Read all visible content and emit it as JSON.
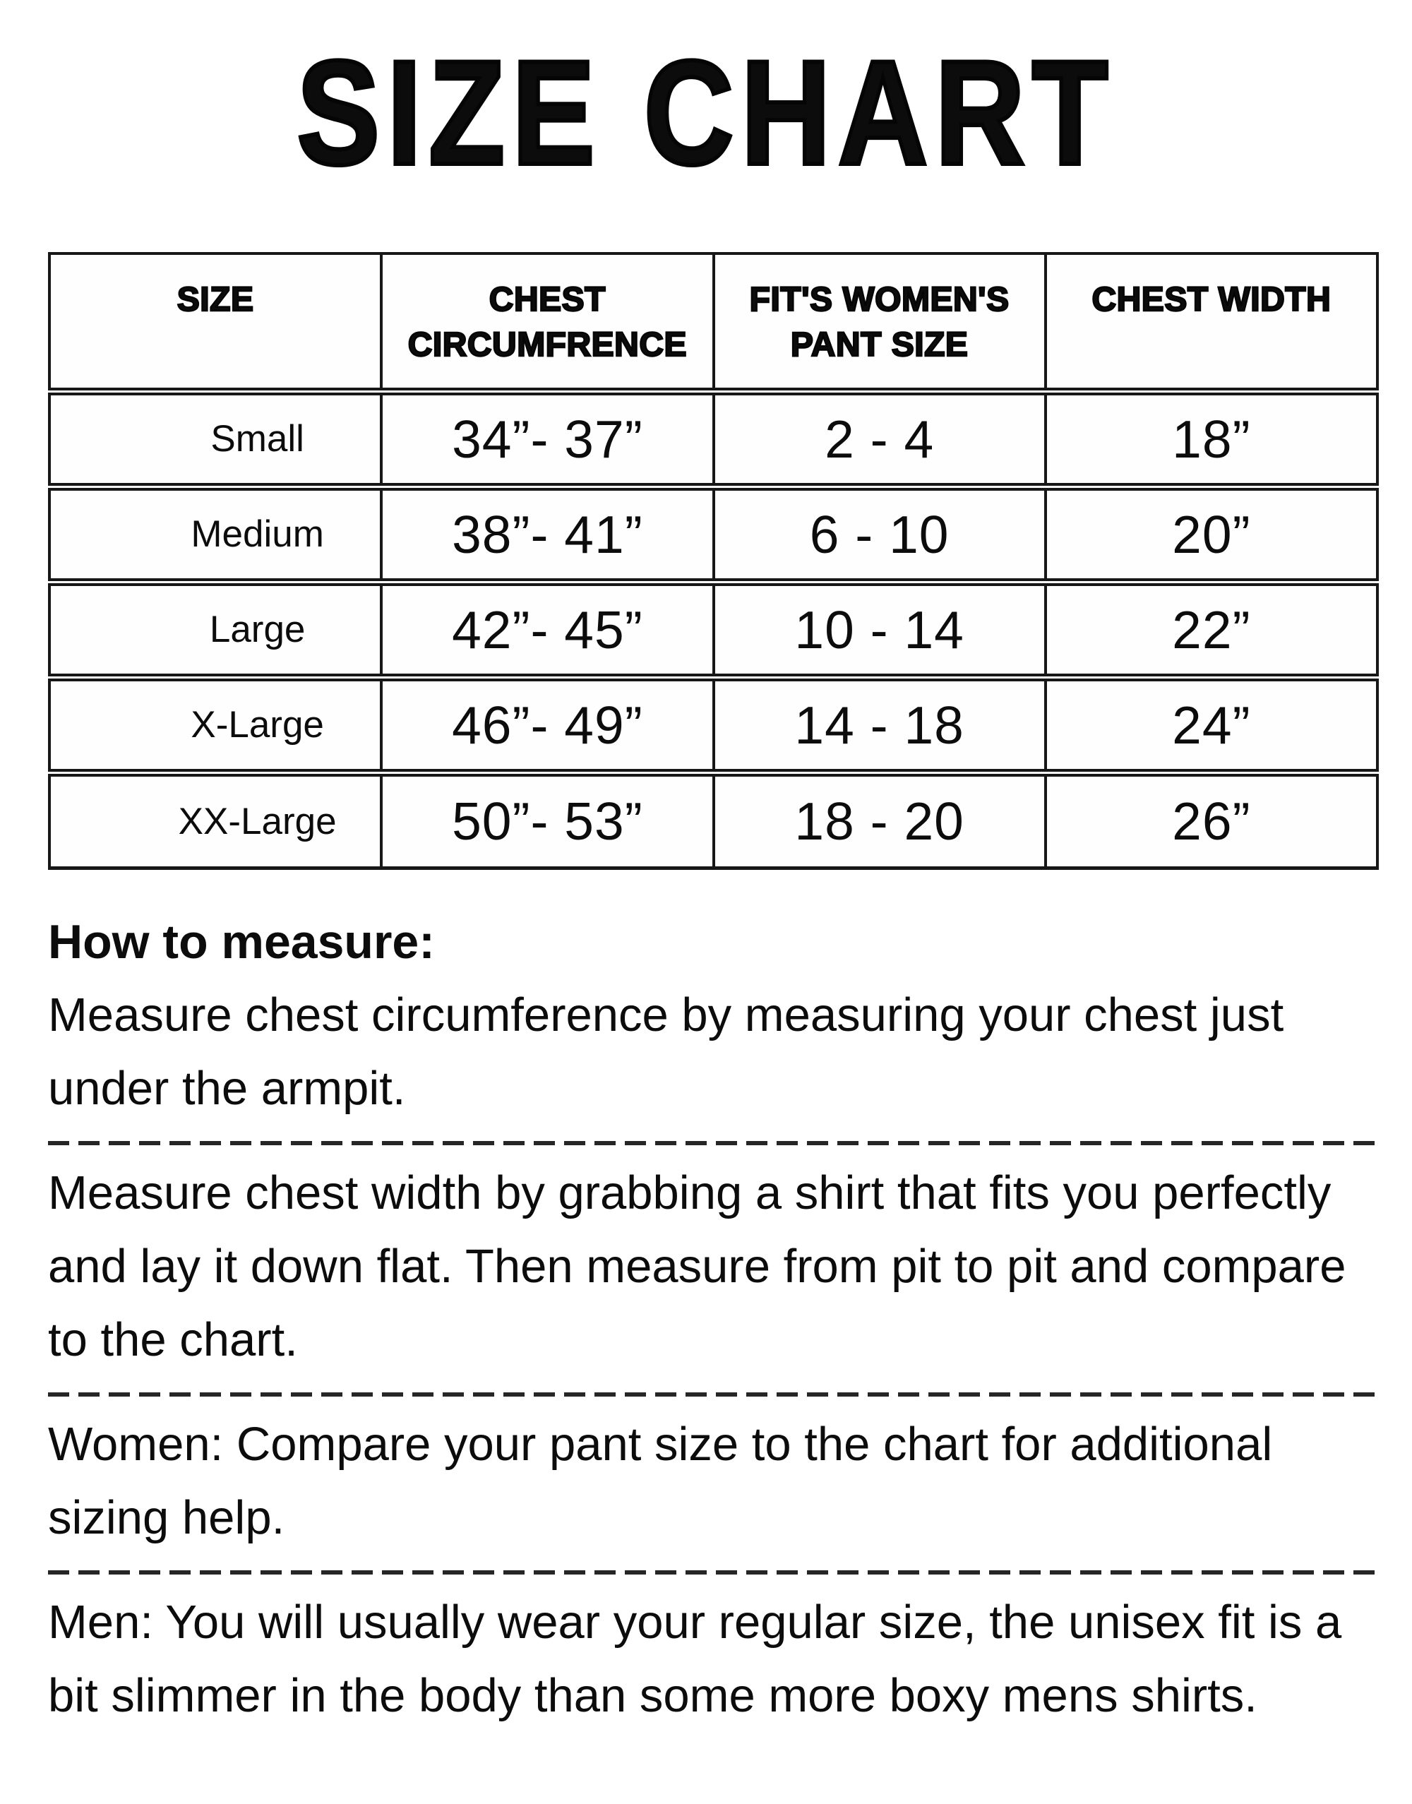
{
  "title": "SIZE CHART",
  "table": {
    "headers": [
      "SIZE",
      "CHEST CIRCUMFRENCE",
      "FIT'S WOMEN'S PANT SIZE",
      "CHEST WIDTH"
    ],
    "rows": [
      {
        "size": "Small",
        "chest_circumference": "34”- 37”",
        "pant_size": "2 - 4",
        "chest_width": "18”"
      },
      {
        "size": "Medium",
        "chest_circumference": "38”- 41”",
        "pant_size": "6 - 10",
        "chest_width": "20”"
      },
      {
        "size": "Large",
        "chest_circumference": "42”- 45”",
        "pant_size": "10 - 14",
        "chest_width": "22”"
      },
      {
        "size": "X-Large",
        "chest_circumference": "46”- 49”",
        "pant_size": "14 - 18",
        "chest_width": "24”"
      },
      {
        "size": "XX-Large",
        "chest_circumference": "50”- 53”",
        "pant_size": "18 - 20",
        "chest_width": "26”"
      }
    ]
  },
  "instructions": {
    "heading": "How to measure:",
    "paragraphs": [
      "Measure chest circumference by measuring your chest just under the armpit.",
      "Measure chest width by grabbing a shirt that fits you perfectly and lay it down flat. Then measure from pit to pit and compare to the chart.",
      "Women: Compare your pant size to the chart for additional sizing help.",
      "Men: You will usually wear your regular size, the unisex fit is a bit slimmer in the body than some more boxy mens shirts."
    ]
  },
  "colors": {
    "background": "#ffffff",
    "text": "#0c0c0c",
    "table_border": "#171717"
  }
}
